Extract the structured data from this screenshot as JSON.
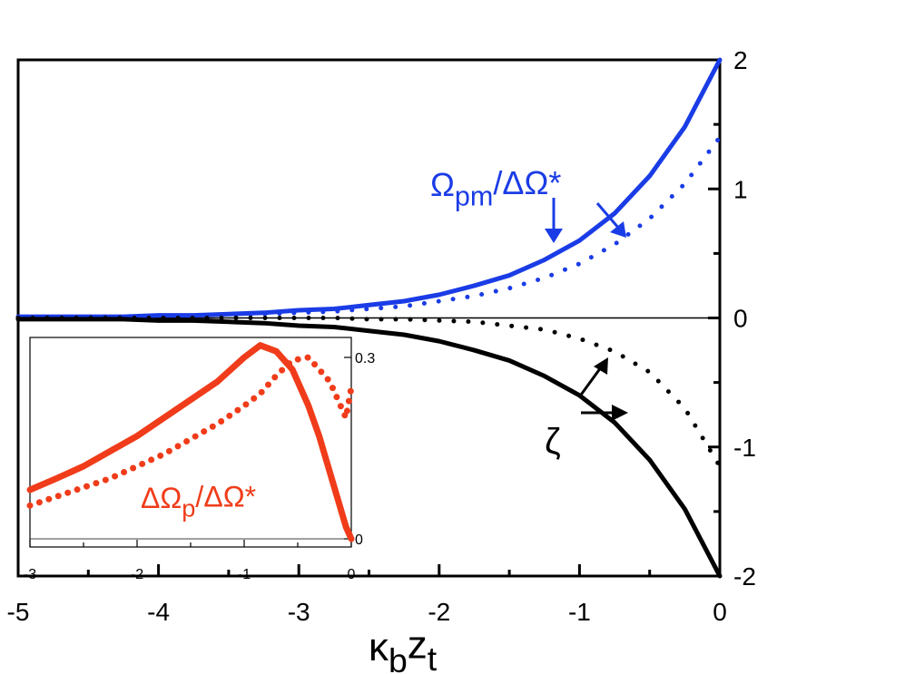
{
  "chart_data": [
    {
      "type": "line",
      "x": [
        -5,
        -4.75,
        -4.5,
        -4.25,
        -4,
        -3.75,
        -3.5,
        -3.25,
        -3,
        -2.75,
        -2.5,
        -2.25,
        -2,
        -1.75,
        -1.5,
        -1.25,
        -1,
        -0.75,
        -0.5,
        -0.25,
        0
      ],
      "series": [
        {
          "color": "#1a3ce6",
          "style": "solid",
          "values": [
            0.01,
            0.01,
            0.01,
            0.01,
            0.02,
            0.02,
            0.03,
            0.04,
            0.06,
            0.07,
            0.1,
            0.13,
            0.18,
            0.25,
            0.33,
            0.45,
            0.6,
            0.81,
            1.1,
            1.48,
            2
          ]
        },
        {
          "color": "#1a3ce6",
          "style": "dotted",
          "values": [
            0,
            0,
            0.01,
            0.01,
            0.01,
            0.02,
            0.02,
            0.03,
            0.04,
            0.05,
            0.07,
            0.09,
            0.13,
            0.17,
            0.23,
            0.31,
            0.42,
            0.57,
            0.77,
            1.04,
            1.4
          ]
        },
        {
          "color": "#000000",
          "style": "solid",
          "values": [
            -0.01,
            -0.01,
            -0.01,
            -0.01,
            -0.02,
            -0.02,
            -0.03,
            -0.04,
            -0.06,
            -0.07,
            -0.1,
            -0.13,
            -0.18,
            -0.25,
            -0.33,
            -0.45,
            -0.6,
            -0.81,
            -1.1,
            -1.48,
            -2
          ]
        },
        {
          "color": "#000000",
          "style": "dotted",
          "values": [
            0,
            0,
            0,
            0,
            0,
            0,
            0,
            0,
            0,
            0,
            -0.01,
            -0.01,
            -0.02,
            -0.03,
            -0.06,
            -0.09,
            -0.16,
            -0.26,
            -0.42,
            -0.7,
            -1.15
          ]
        }
      ],
      "xlim": [
        -5,
        0
      ],
      "ylim": [
        -2,
        2
      ],
      "xticks": [
        -5,
        -4,
        -3,
        -2,
        -1,
        0
      ],
      "xminorticks": [
        -4.5,
        -3.5,
        -2.5,
        -1.5,
        -0.5
      ],
      "yticks": [
        -2,
        -1,
        0,
        1,
        2
      ],
      "yminorticks": [
        -1.5,
        -0.5,
        0.5,
        1.5
      ],
      "xlabel": [
        {
          "text": "κ"
        },
        {
          "text": "b",
          "sub": true
        },
        {
          "text": "z"
        },
        {
          "text": "t",
          "sub": true
        }
      ],
      "annotations": [
        {
          "color": "#1a3ce6",
          "text": [
            {
              "text": "Ω"
            },
            {
              "text": "pm",
              "sub": true
            },
            {
              "text": "/ΔΩ"
            },
            {
              "text": "*"
            }
          ]
        },
        {
          "color": "#000000",
          "text": [
            {
              "text": "ζ"
            }
          ]
        }
      ]
    },
    {
      "type": "line",
      "x": [
        -3,
        -2.75,
        -2.5,
        -2.25,
        -2,
        -1.75,
        -1.5,
        -1.25,
        -1,
        -0.85,
        -0.7,
        -0.55,
        -0.4,
        -0.3,
        -0.2,
        -0.1,
        -0.05,
        0
      ],
      "series": [
        {
          "color": "#f03c1a",
          "style": "solid",
          "values": [
            0.081,
            0.1,
            0.12,
            0.145,
            0.17,
            0.2,
            0.23,
            0.26,
            0.3,
            0.32,
            0.31,
            0.28,
            0.22,
            0.17,
            0.11,
            0.05,
            0.02,
            0
          ]
        },
        {
          "color": "#f03c1a",
          "style": "dotted",
          "values": [
            0.055,
            0.07,
            0.085,
            0.1,
            0.12,
            0.14,
            0.165,
            0.19,
            0.22,
            0.24,
            0.27,
            0.295,
            0.3,
            0.28,
            0.26,
            0.22,
            0.2,
            0.25
          ]
        }
      ],
      "xlim": [
        -3,
        0
      ],
      "ylim": [
        -0.0135,
        0.333
      ],
      "xticks": [
        -3,
        -2,
        -1,
        0
      ],
      "xminorticks": [
        -2.5,
        -1.5,
        -0.5
      ],
      "yticks": [
        0,
        0.3
      ],
      "annotations": [
        {
          "color": "#f03c1a",
          "text": [
            {
              "text": "ΔΩ"
            },
            {
              "text": "p",
              "sub": true
            },
            {
              "text": "/ΔΩ"
            },
            {
              "text": "*"
            }
          ]
        }
      ]
    }
  ]
}
